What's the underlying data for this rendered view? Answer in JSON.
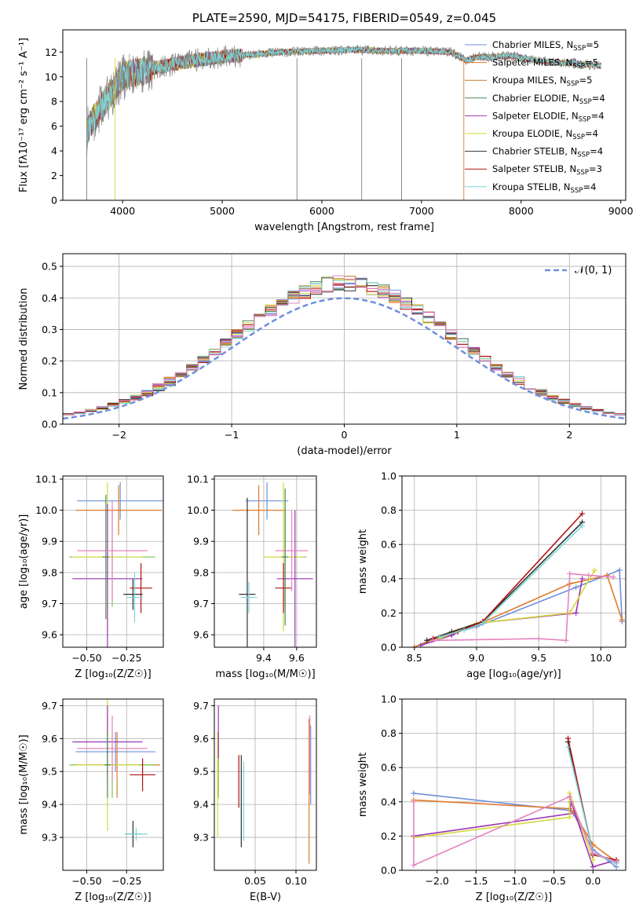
{
  "colors": [
    "#6f8fdc",
    "#e07a2a",
    "#c07a2a",
    "#4e8a55",
    "#9b35b0",
    "#d6d83a",
    "#303030",
    "#b01010",
    "#7bd6d8",
    "#e583bf",
    "#78c84a"
  ],
  "chart_data": [
    {
      "id": "spectrum",
      "type": "line",
      "title": "PLATE=2590, MJD=54175, FIBERID=0549, z=0.045",
      "xlabel": "wavelength [Angstrom, rest frame]",
      "ylabel": "Flux [fλ10⁻¹⁷ erg cm⁻² s⁻¹ A⁻¹]",
      "xlim": [
        3400,
        9050
      ],
      "ylim": [
        0,
        13.8
      ],
      "xticks": [
        "4000",
        "5000",
        "6000",
        "7000",
        "8000",
        "9000"
      ],
      "yticks": [
        "0",
        "2",
        "4",
        "6",
        "8",
        "10",
        "12"
      ],
      "grid": false,
      "legend_position": "top-right",
      "data_range": [
        3640,
        8800
      ],
      "continuum": [
        [
          3640,
          5.5
        ],
        [
          3700,
          6.5
        ],
        [
          3800,
          7.8
        ],
        [
          3900,
          8.8
        ],
        [
          4000,
          10.0
        ],
        [
          4100,
          10.3
        ],
        [
          4200,
          10.4
        ],
        [
          4300,
          10.7
        ],
        [
          4500,
          11.0
        ],
        [
          4700,
          11.3
        ],
        [
          5000,
          11.6
        ],
        [
          5300,
          11.8
        ],
        [
          5600,
          12.0
        ],
        [
          6000,
          12.1
        ],
        [
          6300,
          12.2
        ],
        [
          6600,
          12.1
        ],
        [
          7000,
          12.1
        ],
        [
          7300,
          12.0
        ],
        [
          7450,
          11.3
        ],
        [
          7550,
          11.6
        ],
        [
          7700,
          11.6
        ],
        [
          7900,
          11.7
        ],
        [
          8100,
          11.4
        ],
        [
          8300,
          11.2
        ],
        [
          8500,
          11.1
        ],
        [
          8800,
          10.9
        ]
      ],
      "series": [
        {
          "name": "Chabrier MILES",
          "nssp": "5"
        },
        {
          "name": "Salpeter MILES",
          "nssp": "5"
        },
        {
          "name": "Kroupa MILES",
          "nssp": "5"
        },
        {
          "name": "Chabrier ELODIE",
          "nssp": "4"
        },
        {
          "name": "Salpeter ELODIE",
          "nssp": "4"
        },
        {
          "name": "Kroupa ELODIE",
          "nssp": "4"
        },
        {
          "name": "Chabrier STELIB",
          "nssp": "4"
        },
        {
          "name": "Salpeter STELIB",
          "nssp": "3"
        },
        {
          "name": "Kroupa STELIB",
          "nssp": "4"
        }
      ]
    },
    {
      "id": "residuals",
      "type": "histogram",
      "xlabel": "(data-model)/error",
      "ylabel": "Normed distribution",
      "xlim": [
        -2.5,
        2.5
      ],
      "ylim": [
        0,
        0.54
      ],
      "xticks": [
        "−2",
        "−1",
        "0",
        "1",
        "2"
      ],
      "yticks": [
        "0.0",
        "0.1",
        "0.2",
        "0.3",
        "0.4",
        "0.5"
      ],
      "grid": true,
      "legend_position": "top-right",
      "reference_curve": {
        "label": "𝒩(0, 1)",
        "mean": 0,
        "sd": 1
      },
      "bin_width": 0.1
    },
    {
      "id": "age-vs-Z",
      "type": "errorbar",
      "xlabel": "Z [log₁₀(Z/Z☉)]",
      "ylabel": "age  [log₁₀(age/yr)]",
      "xlim": [
        -0.65,
        -0.02
      ],
      "ylim": [
        9.56,
        10.11
      ],
      "xticks": [
        "−0.50",
        "−0.25"
      ],
      "yticks": [
        "9.6",
        "9.7",
        "9.8",
        "9.9",
        "10.0",
        "10.1"
      ],
      "grid": true,
      "points": [
        {
          "x": -0.29,
          "y": 10.03,
          "xerr": 0.27,
          "yerr": 0.06,
          "c": 0
        },
        {
          "x": -0.3,
          "y": 10.0,
          "xerr": 0.27,
          "yerr": 0.08,
          "c": 1
        },
        {
          "x": -0.21,
          "y": 9.73,
          "xerr": 0.06,
          "yerr": 0.05,
          "c": 6
        },
        {
          "x": -0.34,
          "y": 9.85,
          "xerr": 0.27,
          "yerr": 0.16,
          "c": 10
        },
        {
          "x": -0.37,
          "y": 9.85,
          "xerr": 0.22,
          "yerr": 0.24,
          "c": 5
        },
        {
          "x": -0.37,
          "y": 9.78,
          "xerr": 0.22,
          "yerr": 0.24,
          "c": 4
        },
        {
          "x": -0.16,
          "y": 9.75,
          "xerr": 0.07,
          "yerr": 0.08,
          "c": 7
        },
        {
          "x": -0.34,
          "y": 9.87,
          "xerr": 0.22,
          "yerr": 0.16,
          "c": 9
        },
        {
          "x": -0.2,
          "y": 9.72,
          "xerr": 0.05,
          "yerr": 0.08,
          "c": 8
        },
        {
          "x": -0.38,
          "y": 9.85,
          "xerr": 0.02,
          "yerr": 0.2,
          "c": 3
        }
      ]
    },
    {
      "id": "age-vs-mass",
      "type": "errorbar",
      "xlabel": "mass [log₁₀(M/M☉)]",
      "ylabel": "",
      "xlim": [
        9.1,
        9.72
      ],
      "ylim": [
        9.56,
        10.11
      ],
      "xticks": [
        "9.4",
        "9.6"
      ],
      "yticks": [
        "9.6",
        "9.7",
        "9.8",
        "9.9",
        "10.0",
        "10.1"
      ],
      "grid": true,
      "points": [
        {
          "x": 9.42,
          "y": 10.03,
          "xerr": 0.13,
          "yerr": 0.06,
          "c": 0
        },
        {
          "x": 9.37,
          "y": 10.0,
          "xerr": 0.16,
          "yerr": 0.08,
          "c": 1
        },
        {
          "x": 9.3,
          "y": 9.73,
          "xerr": 0.05,
          "yerr": 0.31,
          "c": 6
        },
        {
          "x": 9.53,
          "y": 9.85,
          "xerr": 0.13,
          "yerr": 0.16,
          "c": 10
        },
        {
          "x": 9.52,
          "y": 9.85,
          "xerr": 0.12,
          "yerr": 0.24,
          "c": 5
        },
        {
          "x": 9.59,
          "y": 9.78,
          "xerr": 0.11,
          "yerr": 0.22,
          "c": 4
        },
        {
          "x": 9.52,
          "y": 9.75,
          "xerr": 0.05,
          "yerr": 0.08,
          "c": 7
        },
        {
          "x": 9.57,
          "y": 9.87,
          "xerr": 0.1,
          "yerr": 0.13,
          "c": 9
        },
        {
          "x": 9.31,
          "y": 9.72,
          "xerr": 0.05,
          "yerr": 0.05,
          "c": 8
        },
        {
          "x": 9.53,
          "y": 9.85,
          "xerr": 0.02,
          "yerr": 0.22,
          "c": 3
        }
      ]
    },
    {
      "id": "weight-vs-age",
      "type": "line",
      "xlabel": "age  [log₁₀(age/yr)]",
      "ylabel": "mass weight",
      "xlim": [
        8.4,
        10.2
      ],
      "ylim": [
        0,
        1.0
      ],
      "xticks": [
        "8.5",
        "9.0",
        "9.5",
        "10.0"
      ],
      "yticks": [
        "0.0",
        "0.2",
        "0.4",
        "0.6",
        "0.8",
        "1.0"
      ],
      "grid": true,
      "series": [
        {
          "c": 0,
          "points": [
            [
              8.5,
              0.0
            ],
            [
              8.65,
              0.05
            ],
            [
              9.0,
              0.12
            ],
            [
              9.8,
              0.35
            ],
            [
              10.15,
              0.45
            ],
            [
              10.17,
              0.15
            ]
          ]
        },
        {
          "c": 1,
          "points": [
            [
              8.5,
              0.0
            ],
            [
              8.7,
              0.06
            ],
            [
              9.0,
              0.13
            ],
            [
              9.75,
              0.37
            ],
            [
              10.05,
              0.42
            ],
            [
              10.17,
              0.16
            ]
          ]
        },
        {
          "c": 4,
          "points": [
            [
              8.55,
              0.01
            ],
            [
              8.8,
              0.07
            ],
            [
              9.0,
              0.14
            ],
            [
              9.8,
              0.2
            ],
            [
              9.85,
              0.4
            ]
          ]
        },
        {
          "c": 5,
          "points": [
            [
              8.7,
              0.05
            ],
            [
              9.0,
              0.14
            ],
            [
              9.75,
              0.2
            ],
            [
              9.95,
              0.45
            ]
          ]
        },
        {
          "c": 6,
          "points": [
            [
              8.6,
              0.04
            ],
            [
              8.8,
              0.09
            ],
            [
              9.05,
              0.15
            ],
            [
              9.85,
              0.73
            ]
          ]
        },
        {
          "c": 7,
          "points": [
            [
              8.65,
              0.05
            ],
            [
              8.85,
              0.09
            ],
            [
              9.05,
              0.15
            ],
            [
              9.85,
              0.78
            ]
          ]
        },
        {
          "c": 8,
          "points": [
            [
              8.7,
              0.06
            ],
            [
              8.9,
              0.1
            ],
            [
              9.05,
              0.14
            ],
            [
              9.85,
              0.71
            ]
          ]
        },
        {
          "c": 9,
          "points": [
            [
              8.65,
              0.04
            ],
            [
              9.5,
              0.05
            ],
            [
              9.72,
              0.04
            ],
            [
              9.75,
              0.43
            ],
            [
              9.9,
              0.42
            ],
            [
              10.1,
              0.41
            ]
          ]
        }
      ]
    },
    {
      "id": "mass-vs-Z",
      "type": "errorbar",
      "xlabel": "Z [log₁₀(Z/Z☉)]",
      "ylabel": "mass [log₁₀(M/M☉)]",
      "xlim": [
        -0.65,
        -0.02
      ],
      "ylim": [
        9.2,
        9.72
      ],
      "xticks": [
        "−0.50",
        "−0.25"
      ],
      "yticks": [
        "9.3",
        "9.4",
        "9.5",
        "9.6",
        "9.7"
      ],
      "grid": true,
      "points": [
        {
          "x": -0.32,
          "y": 9.56,
          "xerr": 0.25,
          "yerr": 0.06,
          "c": 0
        },
        {
          "x": -0.31,
          "y": 9.52,
          "xerr": 0.27,
          "yerr": 0.1,
          "c": 1
        },
        {
          "x": -0.21,
          "y": 9.31,
          "xerr": 0.05,
          "yerr": 0.04,
          "c": 6
        },
        {
          "x": -0.34,
          "y": 9.52,
          "xerr": 0.27,
          "yerr": 0.1,
          "c": 10
        },
        {
          "x": -0.37,
          "y": 9.52,
          "xerr": 0.2,
          "yerr": 0.2,
          "c": 5
        },
        {
          "x": -0.37,
          "y": 9.59,
          "xerr": 0.22,
          "yerr": 0.11,
          "c": 4
        },
        {
          "x": -0.15,
          "y": 9.49,
          "xerr": 0.08,
          "yerr": 0.05,
          "c": 7
        },
        {
          "x": -0.34,
          "y": 9.57,
          "xerr": 0.22,
          "yerr": 0.1,
          "c": 9
        },
        {
          "x": -0.19,
          "y": 9.31,
          "xerr": 0.07,
          "yerr": 0.02,
          "c": 8
        },
        {
          "x": -0.37,
          "y": 9.52,
          "xerr": 0.02,
          "yerr": 0.1,
          "c": 3
        }
      ]
    },
    {
      "id": "mass-vs-ebv",
      "type": "errorbar",
      "xlabel": "E(B-V)",
      "ylabel": "",
      "xlim": [
        0.0,
        0.125
      ],
      "ylim": [
        9.2,
        9.72
      ],
      "xticks": [
        "0.05",
        "0.10"
      ],
      "yticks": [
        "9.3",
        "9.4",
        "9.5",
        "9.6",
        "9.7"
      ],
      "grid": true,
      "points": [
        {
          "x": 0.118,
          "y": 9.52,
          "xerr": 0.0,
          "yerr": 0.12,
          "c": 0
        },
        {
          "x": 0.116,
          "y": 9.44,
          "xerr": 0.0,
          "yerr": 0.22,
          "c": 1
        },
        {
          "x": 0.033,
          "y": 9.41,
          "xerr": 0.0,
          "yerr": 0.14,
          "c": 6
        },
        {
          "x": 0.005,
          "y": 9.52,
          "xerr": 0.0,
          "yerr": 0.1,
          "c": 10
        },
        {
          "x": 0.004,
          "y": 9.46,
          "xerr": 0.0,
          "yerr": 0.16,
          "c": 5
        },
        {
          "x": 0.005,
          "y": 9.62,
          "xerr": 0.0,
          "yerr": 0.08,
          "c": 4
        },
        {
          "x": 0.03,
          "y": 9.47,
          "xerr": 0.0,
          "yerr": 0.08,
          "c": 7
        },
        {
          "x": 0.117,
          "y": 9.55,
          "xerr": 0.0,
          "yerr": 0.12,
          "c": 9
        },
        {
          "x": 0.036,
          "y": 9.41,
          "xerr": 0.0,
          "yerr": 0.12,
          "c": 8
        }
      ]
    },
    {
      "id": "weight-vs-Z",
      "type": "line",
      "xlabel": "Z [log₁₀(Z/Z☉)]",
      "ylabel": "mass weight",
      "xlim": [
        -2.45,
        0.42
      ],
      "ylim": [
        0,
        1.0
      ],
      "xticks": [
        "−2.0",
        "−1.5",
        "−1.0",
        "−0.5",
        "0.0"
      ],
      "yticks": [
        "0.0",
        "0.2",
        "0.4",
        "0.6",
        "0.8",
        "1.0"
      ],
      "grid": true,
      "series": [
        {
          "c": 0,
          "points": [
            [
              -2.3,
              0.45
            ],
            [
              -0.3,
              0.35
            ],
            [
              -0.25,
              0.33
            ],
            [
              0.0,
              0.12
            ],
            [
              0.3,
              0.02
            ]
          ]
        },
        {
          "c": 1,
          "points": [
            [
              -2.3,
              0.41
            ],
            [
              -0.3,
              0.36
            ],
            [
              -0.25,
              0.34
            ],
            [
              0.0,
              0.15
            ],
            [
              0.3,
              0.05
            ]
          ]
        },
        {
          "c": 4,
          "points": [
            [
              -2.3,
              0.2
            ],
            [
              -0.3,
              0.33
            ],
            [
              -0.28,
              0.4
            ],
            [
              0.0,
              0.02
            ],
            [
              0.3,
              0.06
            ]
          ]
        },
        {
          "c": 5,
          "points": [
            [
              -2.3,
              0.19
            ],
            [
              -0.3,
              0.31
            ],
            [
              -0.3,
              0.45
            ],
            [
              0.0,
              0.06
            ]
          ]
        },
        {
          "c": 6,
          "points": [
            [
              -0.32,
              0.75
            ],
            [
              0.0,
              0.1
            ],
            [
              0.3,
              0.05
            ]
          ]
        },
        {
          "c": 7,
          "points": [
            [
              -0.32,
              0.77
            ],
            [
              0.0,
              0.09
            ],
            [
              0.3,
              0.06
            ]
          ]
        },
        {
          "c": 8,
          "points": [
            [
              -0.32,
              0.72
            ],
            [
              0.0,
              0.1
            ],
            [
              0.3,
              0.04
            ]
          ]
        },
        {
          "c": 9,
          "points": [
            [
              -2.3,
              0.4
            ],
            [
              -2.3,
              0.03
            ],
            [
              -0.3,
              0.43
            ],
            [
              0.0,
              0.1
            ],
            [
              0.3,
              0.05
            ]
          ]
        }
      ]
    }
  ]
}
